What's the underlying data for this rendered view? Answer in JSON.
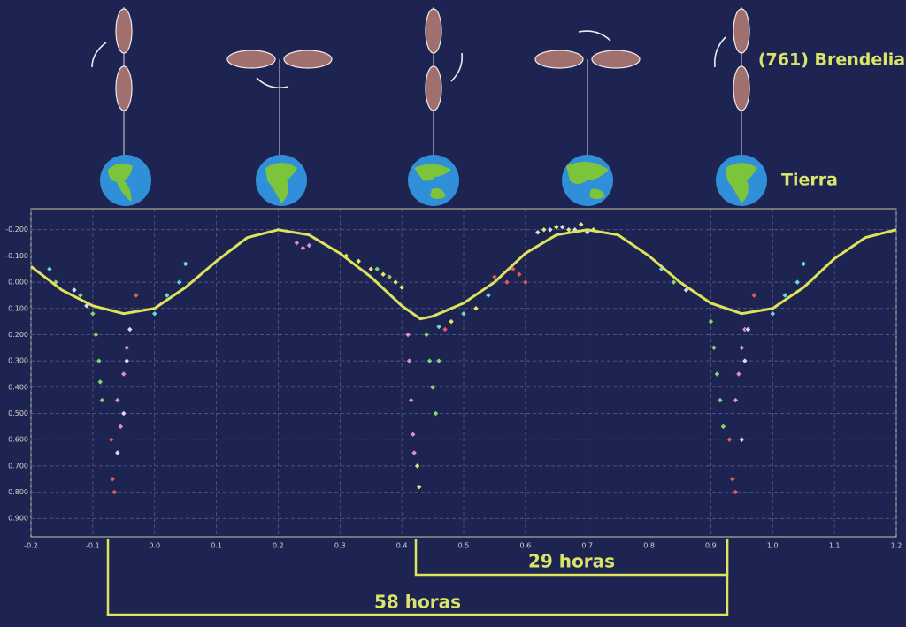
{
  "chart_data": {
    "type": "scatter",
    "xlim": [
      -0.2,
      1.2
    ],
    "ylim": [
      -0.28,
      0.97
    ],
    "y_inverted": true,
    "grid": true,
    "xticks": [
      -0.2,
      -0.1,
      {
        "value": 0,
        "label": "0.0"
      },
      0.1,
      0.2,
      0.3,
      0.4,
      0.5,
      0.6,
      0.7,
      0.8,
      0.9,
      {
        "value": 1,
        "label": "1.0"
      },
      1.1,
      1.2
    ],
    "yticks": [
      {
        "value": -0.2,
        "label": "-0.200"
      },
      {
        "value": -0.1,
        "label": "-0.100"
      },
      {
        "value": 0,
        "label": "0.000"
      },
      {
        "value": 0.1,
        "label": "0.100"
      },
      {
        "value": 0.2,
        "label": "0.200"
      },
      {
        "value": 0.3,
        "label": "0.300"
      },
      {
        "value": 0.4,
        "label": "0.400"
      },
      {
        "value": 0.5,
        "label": "0.500"
      },
      {
        "value": 0.6,
        "label": "0.600"
      },
      {
        "value": 0.7,
        "label": "0.700"
      },
      {
        "value": 0.8,
        "label": "0.800"
      },
      {
        "value": 0.9,
        "label": "0.900"
      }
    ],
    "series": [
      {
        "style": "line",
        "color": "#dde35a",
        "x": [
          -0.2,
          -0.15,
          -0.1,
          -0.05,
          0.0,
          0.05,
          0.1,
          0.15,
          0.2,
          0.25,
          0.3,
          0.35,
          0.4,
          0.43,
          0.45,
          0.5,
          0.55,
          0.6,
          0.65,
          0.7,
          0.75,
          0.8,
          0.85,
          0.9,
          0.95,
          1.0,
          1.05,
          1.1,
          1.15,
          1.2
        ],
        "values": [
          -0.06,
          0.03,
          0.09,
          0.12,
          0.1,
          0.02,
          -0.08,
          -0.17,
          -0.2,
          -0.18,
          -0.11,
          -0.02,
          0.09,
          0.14,
          0.13,
          0.08,
          0.0,
          -0.11,
          -0.18,
          -0.2,
          -0.18,
          -0.1,
          0.0,
          0.08,
          0.12,
          0.1,
          0.02,
          -0.09,
          -0.17,
          -0.2
        ]
      },
      {
        "style": "points",
        "color": "#86d46a",
        "x": [
          -0.16,
          -0.12,
          -0.1,
          -0.095,
          -0.09,
          -0.088,
          -0.085,
          0.36,
          0.38,
          0.44,
          0.445,
          0.45,
          0.455,
          0.46,
          0.84,
          0.9,
          0.905,
          0.91,
          0.915,
          0.92
        ],
        "values": [
          0.0,
          0.05,
          0.12,
          0.2,
          0.3,
          0.38,
          0.45,
          -0.05,
          -0.02,
          0.2,
          0.3,
          0.4,
          0.5,
          0.3,
          0.0,
          0.15,
          0.25,
          0.35,
          0.45,
          0.55
        ]
      },
      {
        "style": "points",
        "color": "#e08ad8",
        "x": [
          0.23,
          0.24,
          0.25,
          -0.06,
          -0.055,
          -0.05,
          -0.045,
          0.41,
          0.412,
          0.415,
          0.418,
          0.42,
          0.94,
          0.945,
          0.95,
          0.955
        ],
        "values": [
          -0.15,
          -0.13,
          -0.14,
          0.45,
          0.55,
          0.35,
          0.25,
          0.2,
          0.3,
          0.45,
          0.58,
          0.65,
          0.45,
          0.35,
          0.25,
          0.18
        ]
      },
      {
        "style": "points",
        "color": "#e05a5a",
        "x": [
          -0.07,
          -0.068,
          -0.065,
          -0.03,
          0.55,
          0.57,
          0.58,
          0.59,
          0.6,
          0.47,
          0.93,
          0.935,
          0.94,
          0.97
        ],
        "values": [
          0.6,
          0.75,
          0.8,
          0.05,
          -0.02,
          0.0,
          -0.05,
          -0.03,
          0.0,
          0.18,
          0.6,
          0.75,
          0.8,
          0.05
        ]
      },
      {
        "style": "points",
        "color": "#6ad8d8",
        "x": [
          0.0,
          0.02,
          0.04,
          0.05,
          -0.17,
          0.46,
          0.5,
          0.54,
          1.0,
          1.02,
          1.04,
          1.05,
          0.82
        ],
        "values": [
          0.12,
          0.05,
          0.0,
          -0.07,
          -0.05,
          0.17,
          0.12,
          0.05,
          0.12,
          0.05,
          0.0,
          -0.07,
          -0.05
        ]
      },
      {
        "style": "points",
        "color": "#dcd8f4",
        "x": [
          -0.13,
          -0.11,
          -0.06,
          -0.05,
          -0.045,
          -0.04,
          0.62,
          0.64,
          0.66,
          0.68,
          0.7,
          0.86,
          0.95,
          0.955,
          0.96
        ],
        "values": [
          0.03,
          0.09,
          0.65,
          0.5,
          0.3,
          0.18,
          -0.19,
          -0.2,
          -0.21,
          -0.2,
          -0.19,
          0.03,
          0.6,
          0.3,
          0.18
        ]
      },
      {
        "style": "points",
        "color": "#e6e66a",
        "x": [
          0.31,
          0.33,
          0.35,
          0.37,
          0.39,
          0.4,
          0.63,
          0.65,
          0.67,
          0.69,
          0.71,
          0.48,
          0.52,
          0.425,
          0.428
        ],
        "values": [
          -0.1,
          -0.08,
          -0.05,
          -0.03,
          0.0,
          0.02,
          -0.2,
          -0.21,
          -0.2,
          -0.22,
          -0.2,
          0.15,
          0.1,
          0.7,
          0.78
        ]
      }
    ],
    "annotations": [
      "(761) Brendelia",
      "Tierra",
      "29 horas",
      "58 horas"
    ]
  }
}
